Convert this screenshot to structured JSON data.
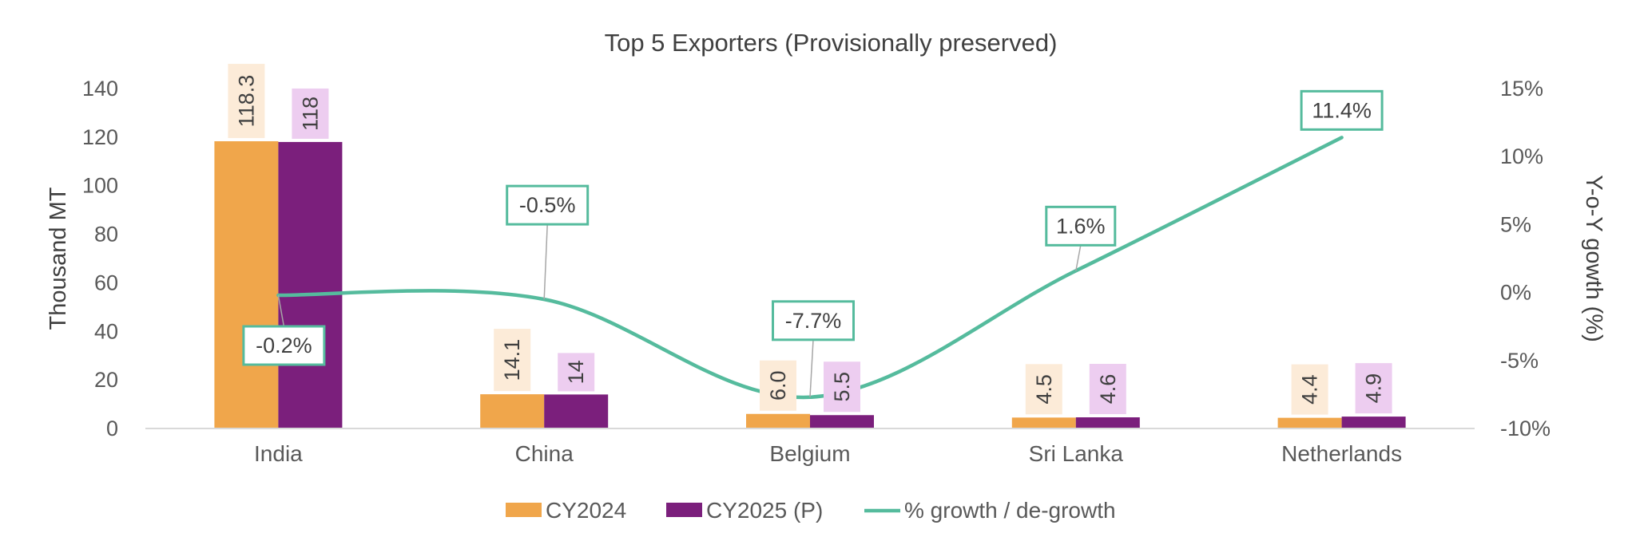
{
  "chart_data": {
    "type": "bar",
    "title": "Top 5 Exporters (Provisionally preserved)",
    "categories": [
      "India",
      "China",
      "Belgium",
      "Sri Lanka",
      "Netherlands"
    ],
    "series": [
      {
        "name": "CY2024",
        "kind": "bar",
        "axis": "left",
        "color": "#F0A64B",
        "label_bg": "#FCEBD8",
        "values": [
          118.3,
          14.1,
          6.0,
          4.5,
          4.4
        ],
        "labels": [
          "118.3",
          "14.1",
          "6.0",
          "4.5",
          "4.4"
        ]
      },
      {
        "name": "CY2025 (P)",
        "kind": "bar",
        "axis": "left",
        "color": "#7B1F7C",
        "label_bg": "#EDCDF0",
        "values": [
          118,
          14,
          5.5,
          4.6,
          4.9
        ],
        "labels": [
          "118",
          "14",
          "5.5",
          "4.6",
          "4.9"
        ]
      },
      {
        "name": "% growth / de-growth",
        "kind": "line",
        "axis": "right",
        "color": "#55BB9D",
        "smooth": true,
        "values": [
          -0.2,
          -0.5,
          -7.7,
          1.6,
          11.4
        ],
        "labels": [
          "-0.2%",
          "-0.5%",
          "-7.7%",
          "1.6%",
          "11.4%"
        ]
      }
    ],
    "ylabel": "Thousand MT",
    "y2label": "Y-o-Y gowth (%)",
    "ylim": [
      0,
      140
    ],
    "yticks": [
      "0",
      "20",
      "40",
      "60",
      "80",
      "100",
      "120",
      "140"
    ],
    "y2lim": [
      -10,
      15
    ],
    "y2ticks": [
      "-10%",
      "-5%",
      "0%",
      "5%",
      "10%",
      "15%"
    ],
    "legend_position": "bottom",
    "grid": false
  }
}
